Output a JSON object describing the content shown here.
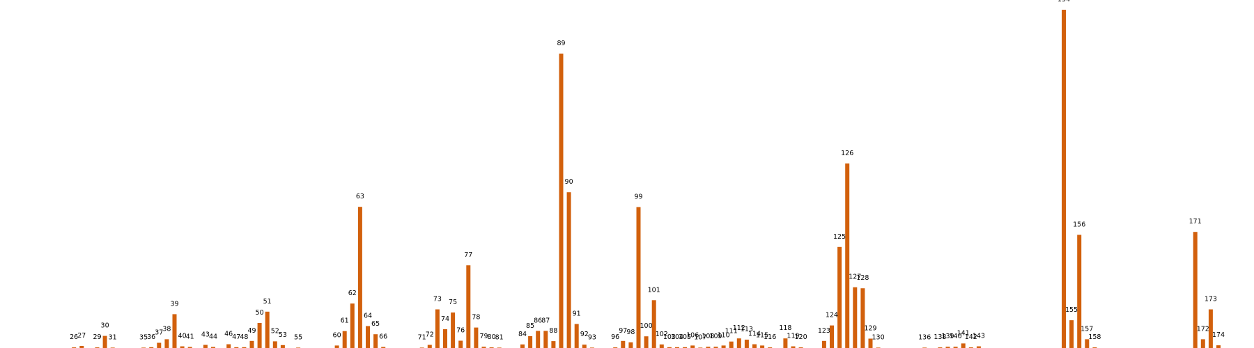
{
  "chart_data": {
    "type": "bar",
    "title": "",
    "xlabel": "",
    "ylabel": "",
    "grid": false,
    "legend": "none",
    "bar_color": "#d2600c",
    "ylim": [
      0,
      160
    ],
    "xlim": [
      24,
      177
    ],
    "points": [
      {
        "x": 26,
        "label": "26",
        "value": 0.3
      },
      {
        "x": 27,
        "label": "27",
        "value": 1.0
      },
      {
        "x": 29,
        "label": "29",
        "value": 0.3
      },
      {
        "x": 30,
        "label": "30",
        "value": 5.8
      },
      {
        "x": 31,
        "label": "31",
        "value": 0.1
      },
      {
        "x": 35,
        "label": "35",
        "value": 0.1
      },
      {
        "x": 36,
        "label": "36",
        "value": 0.4
      },
      {
        "x": 37,
        "label": "37",
        "value": 2.5
      },
      {
        "x": 38,
        "label": "38",
        "value": 4.2
      },
      {
        "x": 39,
        "label": "39",
        "value": 16.2
      },
      {
        "x": 40,
        "label": "40",
        "value": 0.8
      },
      {
        "x": 41,
        "label": "41",
        "value": 0.5
      },
      {
        "x": 43,
        "label": "43",
        "value": 1.5
      },
      {
        "x": 44,
        "label": "44",
        "value": 0.5
      },
      {
        "x": 46,
        "label": "46",
        "value": 1.8
      },
      {
        "x": 47,
        "label": "47",
        "value": 0.4
      },
      {
        "x": 48,
        "label": "48",
        "value": 0.4
      },
      {
        "x": 49,
        "label": "49",
        "value": 3.4
      },
      {
        "x": 50,
        "label": "50",
        "value": 12.0
      },
      {
        "x": 51,
        "label": "51",
        "value": 17.4
      },
      {
        "x": 52,
        "label": "52",
        "value": 3.2
      },
      {
        "x": 53,
        "label": "53",
        "value": 1.4
      },
      {
        "x": 55,
        "label": "55",
        "value": 0.1
      },
      {
        "x": 60,
        "label": "60",
        "value": 1.2
      },
      {
        "x": 61,
        "label": "61",
        "value": 8.1
      },
      {
        "x": 62,
        "label": "62",
        "value": 21.3
      },
      {
        "x": 63,
        "label": "63",
        "value": 67.6
      },
      {
        "x": 64,
        "label": "64",
        "value": 10.5
      },
      {
        "x": 65,
        "label": "65",
        "value": 6.6
      },
      {
        "x": 66,
        "label": "66",
        "value": 0.5
      },
      {
        "x": 71,
        "label": "71",
        "value": 0.1
      },
      {
        "x": 72,
        "label": "72",
        "value": 1.5
      },
      {
        "x": 73,
        "label": "73",
        "value": 18.5
      },
      {
        "x": 74,
        "label": "74",
        "value": 9.0
      },
      {
        "x": 75,
        "label": "75",
        "value": 17.0
      },
      {
        "x": 76,
        "label": "76",
        "value": 3.5
      },
      {
        "x": 77,
        "label": "77",
        "value": 39.6
      },
      {
        "x": 78,
        "label": "78",
        "value": 9.8
      },
      {
        "x": 79,
        "label": "79",
        "value": 0.6
      },
      {
        "x": 80,
        "label": "80",
        "value": 0.3
      },
      {
        "x": 81,
        "label": "81",
        "value": 0.1
      },
      {
        "x": 84,
        "label": "84",
        "value": 1.7
      },
      {
        "x": 85,
        "label": "85",
        "value": 5.7
      },
      {
        "x": 86,
        "label": "86",
        "value": 8.2
      },
      {
        "x": 87,
        "label": "87",
        "value": 8.2
      },
      {
        "x": 88,
        "label": "88",
        "value": 3.3
      },
      {
        "x": 89,
        "label": "89",
        "value": 141.0
      },
      {
        "x": 90,
        "label": "90",
        "value": 74.6
      },
      {
        "x": 91,
        "label": "91",
        "value": 11.5
      },
      {
        "x": 92,
        "label": "92",
        "value": 1.6
      },
      {
        "x": 93,
        "label": "93",
        "value": 0.1
      },
      {
        "x": 96,
        "label": "96",
        "value": 0.3
      },
      {
        "x": 97,
        "label": "97",
        "value": 3.4
      },
      {
        "x": 98,
        "label": "98",
        "value": 2.7
      },
      {
        "x": 99,
        "label": "99",
        "value": 67.5
      },
      {
        "x": 100,
        "label": "100",
        "value": 5.6
      },
      {
        "x": 101,
        "label": "101",
        "value": 22.9
      },
      {
        "x": 102,
        "label": "102",
        "value": 1.7
      },
      {
        "x": 103,
        "label": "103",
        "value": 0.4
      },
      {
        "x": 104,
        "label": "104",
        "value": 0.4
      },
      {
        "x": 105,
        "label": "105",
        "value": 0.4
      },
      {
        "x": 106,
        "label": "106",
        "value": 1.2
      },
      {
        "x": 107,
        "label": "107",
        "value": 0.1
      },
      {
        "x": 108,
        "label": "108",
        "value": 0.6
      },
      {
        "x": 109,
        "label": "109",
        "value": 0.6
      },
      {
        "x": 110,
        "label": "110",
        "value": 1.2
      },
      {
        "x": 111,
        "label": "111",
        "value": 3.1
      },
      {
        "x": 112,
        "label": "112",
        "value": 4.6
      },
      {
        "x": 113,
        "label": "113",
        "value": 4.0
      },
      {
        "x": 114,
        "label": "114",
        "value": 1.8
      },
      {
        "x": 115,
        "label": "115",
        "value": 1.2
      },
      {
        "x": 116,
        "label": "116",
        "value": 0.3
      },
      {
        "x": 118,
        "label": "118",
        "value": 4.6
      },
      {
        "x": 119,
        "label": "119",
        "value": 0.8
      },
      {
        "x": 120,
        "label": "120",
        "value": 0.3
      },
      {
        "x": 123,
        "label": "123",
        "value": 3.4
      },
      {
        "x": 124,
        "label": "124",
        "value": 10.8
      },
      {
        "x": 125,
        "label": "125",
        "value": 48.4
      },
      {
        "x": 126,
        "label": "126",
        "value": 88.4
      },
      {
        "x": 127,
        "label": "127",
        "value": 29.1
      },
      {
        "x": 128,
        "label": "128",
        "value": 28.6
      },
      {
        "x": 129,
        "label": "129",
        "value": 4.5
      },
      {
        "x": 130,
        "label": "130",
        "value": 0.2
      },
      {
        "x": 136,
        "label": "136",
        "value": 0.1
      },
      {
        "x": 138,
        "label": "138",
        "value": 0.3
      },
      {
        "x": 139,
        "label": "139",
        "value": 0.6
      },
      {
        "x": 140,
        "label": "140",
        "value": 0.6
      },
      {
        "x": 141,
        "label": "141",
        "value": 2.2
      },
      {
        "x": 142,
        "label": "142",
        "value": 0.3
      },
      {
        "x": 143,
        "label": "143",
        "value": 0.8
      },
      {
        "x": 154,
        "label": "154",
        "value": 162.0
      },
      {
        "x": 155,
        "label": "155",
        "value": 13.3
      },
      {
        "x": 156,
        "label": "156",
        "value": 54.2
      },
      {
        "x": 157,
        "label": "157",
        "value": 4.2
      },
      {
        "x": 158,
        "label": "158",
        "value": 0.3
      },
      {
        "x": 171,
        "label": "171",
        "value": 55.6
      },
      {
        "x": 172,
        "label": "172",
        "value": 4.2
      },
      {
        "x": 173,
        "label": "173",
        "value": 18.5
      },
      {
        "x": 174,
        "label": "174",
        "value": 1.3
      }
    ]
  }
}
